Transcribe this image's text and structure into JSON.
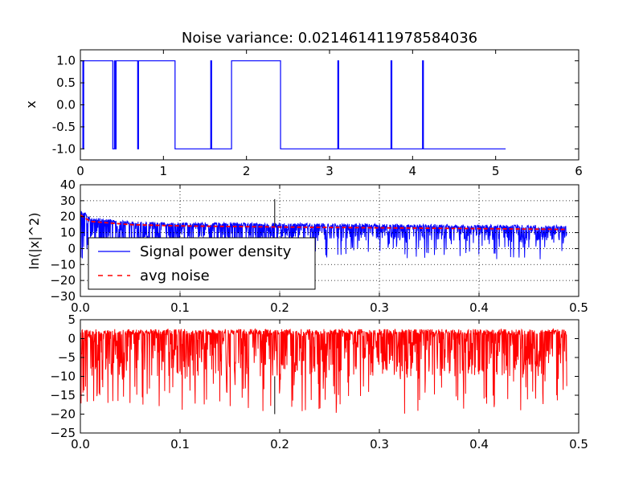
{
  "chart_data": [
    {
      "type": "line",
      "title": "Noise variance: 0.021461411978584036",
      "xlabel": "",
      "ylabel": "x",
      "xlim": [
        0,
        6
      ],
      "ylim": [
        -1.25,
        1.25
      ],
      "xticks": [
        "0",
        "1",
        "2",
        "3",
        "4",
        "5",
        "6"
      ],
      "yticks": [
        "1.0",
        "0.5",
        "0.0",
        "-0.5",
        "-1.0"
      ],
      "grid": false,
      "series": [
        {
          "color": "#0000ff",
          "step_x": [
            0,
            0.03,
            0.04,
            0.39,
            0.41,
            0.42,
            0.43,
            0.69,
            0.7,
            1.14,
            1.57,
            1.58,
            1.82,
            2.41,
            3.1,
            3.11,
            3.74,
            3.75,
            4.12,
            4.13,
            5.12
          ],
          "step_y": [
            1,
            -1,
            1,
            -1,
            1,
            -1,
            1,
            -1,
            1,
            -1,
            1,
            -1,
            1,
            -1,
            1,
            -1,
            1,
            -1,
            1,
            -1,
            -1
          ]
        }
      ]
    },
    {
      "type": "line",
      "title": "",
      "xlabel": "",
      "ylabel": "ln(|x|^2)",
      "xlim": [
        0,
        0.5
      ],
      "ylim": [
        -30,
        40
      ],
      "xticks": [
        "0.0",
        "0.1",
        "0.2",
        "0.3",
        "0.4",
        "0.5"
      ],
      "yticks": [
        "40",
        "30",
        "20",
        "10",
        "0",
        "−10",
        "−20",
        "−30"
      ],
      "grid": true,
      "legend_position": "lower-left",
      "series": [
        {
          "name": "Signal power density",
          "color": "#0000ff",
          "x_max": 0.488,
          "envelope_top": [
            [
              0,
              25
            ],
            [
              0.01,
              20
            ],
            [
              0.05,
              17
            ],
            [
              0.1,
              16.5
            ],
            [
              0.2,
              16
            ],
            [
              0.3,
              15.5
            ],
            [
              0.4,
              15
            ],
            [
              0.488,
              14.5
            ]
          ],
          "typical_low": 5,
          "deepest_dip": -7,
          "spike": {
            "x": 0.195,
            "y": 31
          }
        },
        {
          "name": "avg noise",
          "color": "#ff0000",
          "style": "dashed",
          "points": [
            [
              0,
              21
            ],
            [
              0.01,
              17
            ],
            [
              0.05,
              15
            ],
            [
              0.1,
              14.2
            ],
            [
              0.2,
              13.5
            ],
            [
              0.3,
              13
            ],
            [
              0.4,
              12.5
            ],
            [
              0.488,
              12
            ]
          ]
        }
      ]
    },
    {
      "type": "line",
      "title": "",
      "xlabel": "",
      "ylabel": "",
      "xlim": [
        0,
        0.5
      ],
      "ylim": [
        -25,
        5
      ],
      "xticks": [
        "0.0",
        "0.1",
        "0.2",
        "0.3",
        "0.4",
        "0.5"
      ],
      "yticks": [
        "5",
        "0",
        "−5",
        "−10",
        "−15",
        "−20",
        "−25"
      ],
      "grid": false,
      "series": [
        {
          "color": "#ff0000",
          "x_max": 0.488,
          "top": 2.5,
          "typical_low": -10,
          "deepest_dip": -20,
          "spike": {
            "x": 0.195,
            "y": -20
          }
        }
      ]
    }
  ]
}
